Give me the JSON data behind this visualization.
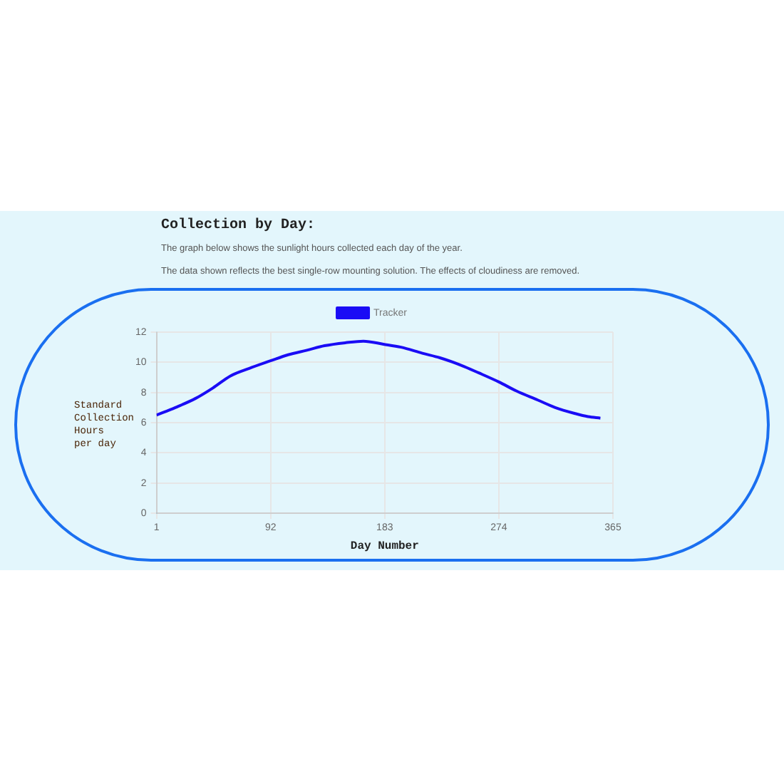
{
  "chart_data": {
    "type": "line",
    "title": "Collection by Day:",
    "subtitle": "The graph below shows the sunlight hours collected each day of the year.",
    "annotations": [
      "The data shown reflects the best single-row mounting solution. The effects of cloudiness are removed."
    ],
    "xlabel": "Day Number",
    "ylabel": "Standard\nCollection\nHours\nper day",
    "series": [
      {
        "name": "Tracker",
        "color": "#1a0cf5",
        "x": [
          1,
          16,
          32,
          46,
          60,
          75,
          92,
          106,
          121,
          135,
          152,
          166,
          182,
          196,
          213,
          227,
          244,
          258,
          274,
          288,
          305,
          319,
          335,
          345,
          355
        ],
        "values": [
          6.5,
          7.0,
          7.6,
          8.3,
          9.1,
          9.6,
          10.1,
          10.5,
          10.8,
          11.1,
          11.3,
          11.4,
          11.2,
          11.0,
          10.6,
          10.3,
          9.8,
          9.3,
          8.7,
          8.1,
          7.5,
          7.0,
          6.6,
          6.4,
          6.3
        ]
      }
    ],
    "xlim": [
      1,
      365
    ],
    "xticks": [
      1,
      92,
      183,
      274,
      365
    ],
    "ylim": [
      0,
      12
    ],
    "yticks": [
      0,
      2,
      4,
      6,
      8,
      10,
      12
    ],
    "grid": true,
    "legend": "top",
    "marker": "none"
  }
}
